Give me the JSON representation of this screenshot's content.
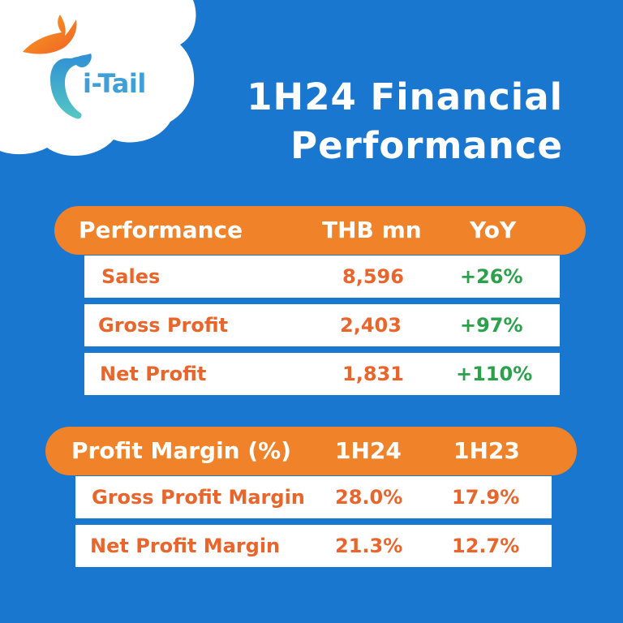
{
  "brand": {
    "name": "i-Tail"
  },
  "title": {
    "line1": "1H24 Financial",
    "line2": "Performance"
  },
  "performance_table": {
    "headers": [
      "Performance",
      "THB mn",
      "YoY"
    ],
    "rows": [
      {
        "label": "Sales",
        "value": "8,596",
        "yoy": "+26%"
      },
      {
        "label": "Gross Profit",
        "value": "2,403",
        "yoy": "+97%"
      },
      {
        "label": "Net Profit",
        "value": "1,831",
        "yoy": "+110%"
      }
    ]
  },
  "margin_table": {
    "headers": [
      "Profit Margin (%)",
      "1H24",
      "1H23"
    ],
    "rows": [
      {
        "label": "Gross Profit Margin",
        "h24": "28.0%",
        "h23": "17.9%"
      },
      {
        "label": "Net Profit Margin",
        "h24": "21.3%",
        "h23": "12.7%"
      }
    ]
  },
  "colors": {
    "background": "#1a77d0",
    "accent_orange": "#f0822a",
    "label_orange": "#e9652b",
    "positive_green": "#2aa14a",
    "brand_blue": "#3f9fd8"
  },
  "icons": {
    "logo": "i-tail-logo-icon"
  }
}
